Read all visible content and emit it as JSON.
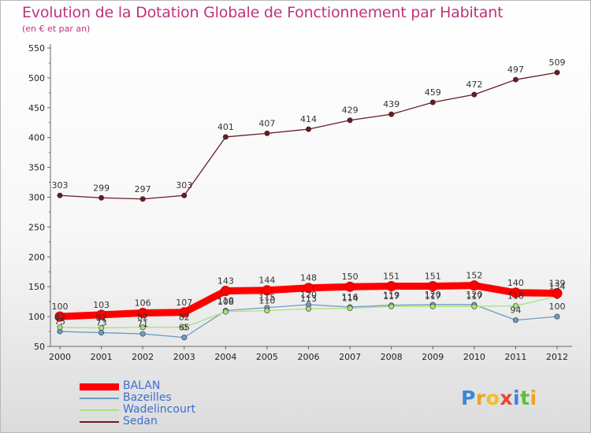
{
  "title": "Evolution de la Dotation Globale de Fonctionnement par Habitant",
  "subtitle": "(en € et par an)",
  "logo": {
    "text": "Proxiti",
    "letters": [
      "P",
      "r",
      "o",
      "x",
      "i",
      "t",
      "i"
    ],
    "colors": [
      "#3a88d6",
      "#e8a42a",
      "#f0c020",
      "#e64638",
      "#3a88d6",
      "#5bbf3a",
      "#e8a42a"
    ]
  },
  "chart_data": {
    "type": "line",
    "title": "Evolution de la Dotation Globale de Fonctionnement par Habitant",
    "subtitle": "(en € et par an)",
    "xlabel": "",
    "ylabel": "",
    "ylim": [
      50,
      550
    ],
    "yticks": [
      50,
      100,
      150,
      200,
      250,
      300,
      350,
      400,
      450,
      500,
      550
    ],
    "grid": false,
    "legend_position": "bottom-left",
    "categories": [
      "2000",
      "2001",
      "2002",
      "2003",
      "2004",
      "2005",
      "2006",
      "2007",
      "2008",
      "2009",
      "2010",
      "2011",
      "2012"
    ],
    "series": [
      {
        "name": "BALAN",
        "color": "#ff0000",
        "line_weight": "thick",
        "values": [
          100,
          103,
          106,
          107,
          143,
          144,
          148,
          150,
          151,
          151,
          152,
          140,
          139
        ]
      },
      {
        "name": "Bazeilles",
        "color": "#6f9bc4",
        "line_weight": "thin",
        "values": [
          75,
          73,
          71,
          65,
          110,
          115,
          120,
          116,
          119,
          120,
          120,
          94,
          100
        ]
      },
      {
        "name": "Wadelincourt",
        "color": "#a8e07a",
        "line_weight": "thin",
        "values": [
          82,
          81,
          82,
          82,
          108,
          110,
          113,
          114,
          117,
          117,
          117,
          118,
          134
        ]
      },
      {
        "name": "Sedan",
        "color": "#6a1a22",
        "line_weight": "thin",
        "values": [
          303,
          299,
          297,
          303,
          401,
          407,
          414,
          429,
          439,
          459,
          472,
          497,
          509
        ]
      }
    ]
  }
}
